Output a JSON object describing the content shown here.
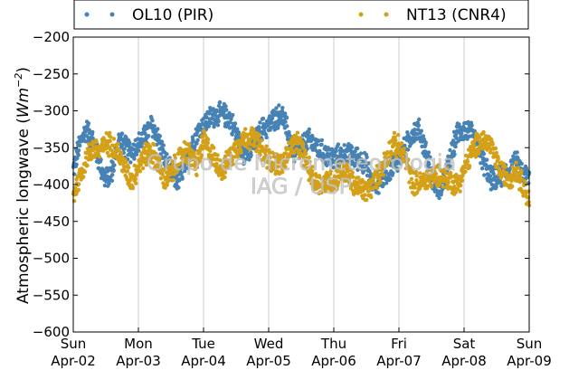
{
  "chart_data": {
    "type": "scatter",
    "ylabel": "Atmospheric longwave (Wm⁻²)",
    "ylabel_plain": "Atmospheric longwave (",
    "ylabel_unit_base": "Wm",
    "ylabel_unit_exp": "−2",
    "ylabel_close": ")",
    "ylim": [
      -600,
      -200
    ],
    "yticks": [
      "−200",
      "−250",
      "−300",
      "−350",
      "−400",
      "−450",
      "−500",
      "−550",
      "−600"
    ],
    "ytick_values": [
      -200,
      -250,
      -300,
      -350,
      -400,
      -450,
      -500,
      -550,
      -600
    ],
    "xlim": [
      0,
      7
    ],
    "xticks": [
      {
        "day": "Sun",
        "date": "Apr-02"
      },
      {
        "day": "Mon",
        "date": "Apr-03"
      },
      {
        "day": "Tue",
        "date": "Apr-04"
      },
      {
        "day": "Wed",
        "date": "Apr-05"
      },
      {
        "day": "Thu",
        "date": "Apr-06"
      },
      {
        "day": "Fri",
        "date": "Apr-07"
      },
      {
        "day": "Sat",
        "date": "Apr-08"
      },
      {
        "day": "Sun",
        "date": "Apr-09"
      }
    ],
    "grid": "vertical",
    "legend_placement": "top, outside",
    "series": [
      {
        "name": "OL10 (PIR)",
        "color": "#4682b4",
        "x": [
          0.0,
          0.1,
          0.2,
          0.3,
          0.4,
          0.5,
          0.6,
          0.7,
          0.8,
          0.9,
          1.0,
          1.1,
          1.2,
          1.3,
          1.4,
          1.5,
          1.6,
          1.7,
          1.8,
          1.9,
          2.0,
          2.1,
          2.2,
          2.3,
          2.4,
          2.5,
          2.6,
          2.7,
          2.8,
          2.9,
          3.0,
          3.1,
          3.2,
          3.3,
          3.4,
          3.5,
          3.6,
          3.7,
          3.8,
          3.9,
          4.0,
          4.1,
          4.2,
          4.3,
          4.4,
          4.5,
          4.6,
          4.7,
          4.8,
          4.9,
          5.0,
          5.1,
          5.2,
          5.3,
          5.4,
          5.5,
          5.6,
          5.7,
          5.8,
          5.9,
          6.0,
          6.1,
          6.2,
          6.3,
          6.4,
          6.5,
          6.6,
          6.7,
          6.8,
          6.9,
          7.0
        ],
        "y": [
          -380,
          -345,
          -325,
          -340,
          -370,
          -395,
          -380,
          -340,
          -350,
          -355,
          -345,
          -335,
          -320,
          -335,
          -365,
          -385,
          -395,
          -380,
          -350,
          -330,
          -320,
          -310,
          -305,
          -305,
          -310,
          -330,
          -355,
          -360,
          -340,
          -325,
          -320,
          -310,
          -305,
          -330,
          -360,
          -350,
          -340,
          -345,
          -355,
          -360,
          -365,
          -360,
          -360,
          -362,
          -365,
          -375,
          -400,
          -395,
          -385,
          -375,
          -365,
          -350,
          -330,
          -325,
          -350,
          -385,
          -410,
          -395,
          -360,
          -330,
          -325,
          -330,
          -345,
          -370,
          -390,
          -395,
          -385,
          -380,
          -370,
          -385,
          -390
        ],
        "spread": 18
      },
      {
        "name": "NT13 (CNR4)",
        "color": "#d4a017",
        "x": [
          0.0,
          0.1,
          0.2,
          0.3,
          0.4,
          0.5,
          0.6,
          0.7,
          0.8,
          0.9,
          1.0,
          1.1,
          1.2,
          1.3,
          1.4,
          1.5,
          1.6,
          1.7,
          1.8,
          1.9,
          2.0,
          2.1,
          2.2,
          2.3,
          2.4,
          2.5,
          2.6,
          2.7,
          2.8,
          2.9,
          3.0,
          3.1,
          3.2,
          3.3,
          3.4,
          3.5,
          3.6,
          3.7,
          3.8,
          3.9,
          4.0,
          4.1,
          4.2,
          4.3,
          4.4,
          4.5,
          4.6,
          4.7,
          4.8,
          4.9,
          5.0,
          5.1,
          5.2,
          5.3,
          5.4,
          5.5,
          5.6,
          5.7,
          5.8,
          5.9,
          6.0,
          6.1,
          6.2,
          6.3,
          6.4,
          6.5,
          6.6,
          6.7,
          6.8,
          6.9,
          7.0
        ],
        "y": [
          -415,
          -390,
          -365,
          -350,
          -355,
          -345,
          -345,
          -360,
          -380,
          -395,
          -375,
          -360,
          -355,
          -370,
          -395,
          -385,
          -370,
          -355,
          -360,
          -375,
          -340,
          -355,
          -370,
          -380,
          -365,
          -350,
          -340,
          -335,
          -340,
          -355,
          -365,
          -370,
          -375,
          -355,
          -345,
          -350,
          -375,
          -395,
          -400,
          -395,
          -395,
          -385,
          -385,
          -400,
          -405,
          -410,
          -400,
          -385,
          -365,
          -345,
          -350,
          -365,
          -395,
          -400,
          -395,
          -390,
          -385,
          -390,
          -395,
          -400,
          -380,
          -360,
          -345,
          -340,
          -345,
          -370,
          -385,
          -390,
          -380,
          -400,
          -420
        ],
        "spread": 18
      }
    ]
  },
  "watermark": {
    "line1": "Grupo de Micrometeorologia",
    "line2": "IAG / USP"
  }
}
